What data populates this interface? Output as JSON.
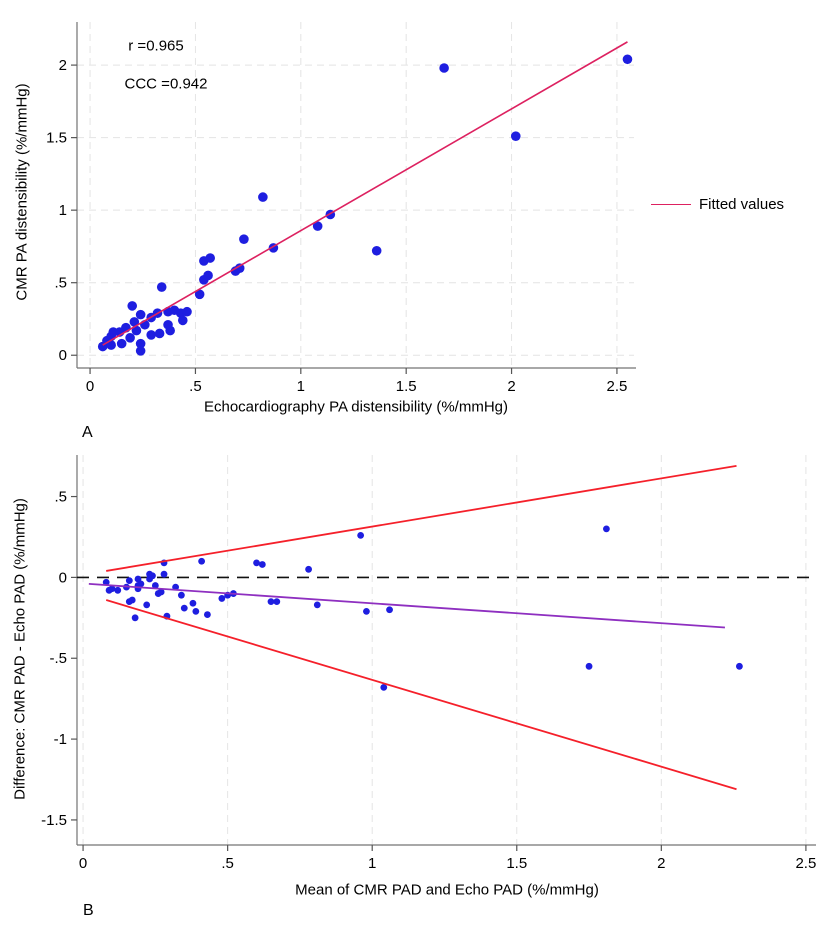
{
  "figure": {
    "background": "#ffffff",
    "panel_a_letter": "A",
    "panel_b_letter": "B"
  },
  "panel_a": {
    "y_title": "CMR PA distensibility (%/mmHg)",
    "x_title": "Echocardiography PA distensibility (%/mmHg)",
    "annotation_r": "r =0.965",
    "annotation_ccc": "CCC =0.942",
    "legend": {
      "label": "Fitted values",
      "line_color": "#dd2160"
    }
  },
  "panel_b": {
    "y_title": "Difference: CMR PAD - Echo PAD (%/mmHg)",
    "x_title": "Mean of CMR PAD and Echo PAD (%/mmHg)"
  },
  "chart_data": [
    {
      "id": "panel-a",
      "type": "scatter",
      "title": "",
      "xlabel": "Echocardiography PA distensibility (%/mmHg)",
      "ylabel": "CMR PA distensibility (%/mmHg)",
      "xlim": [
        -0.062,
        2.581
      ],
      "ylim": [
        -0.088,
        2.297
      ],
      "xticks": [
        0,
        0.5,
        1,
        1.5,
        2,
        2.5
      ],
      "xtick_labels": [
        "0",
        ".5",
        "1",
        "1.5",
        "2",
        "2.5"
      ],
      "yticks": [
        0,
        0.5,
        1,
        1.5,
        2
      ],
      "ytick_labels": [
        "0",
        ".5",
        "1",
        "1.5",
        "2"
      ],
      "grid": {
        "x": true,
        "y": true
      },
      "point_color": "#1e1ee0",
      "stats": {
        "r": 0.965,
        "ccc": 0.942
      },
      "points": [
        [
          0.06,
          0.06
        ],
        [
          0.08,
          0.1
        ],
        [
          0.1,
          0.07
        ],
        [
          0.1,
          0.13
        ],
        [
          0.11,
          0.16
        ],
        [
          0.14,
          0.16
        ],
        [
          0.15,
          0.08
        ],
        [
          0.17,
          0.19
        ],
        [
          0.19,
          0.12
        ],
        [
          0.2,
          0.34
        ],
        [
          0.21,
          0.23
        ],
        [
          0.22,
          0.17
        ],
        [
          0.24,
          0.03
        ],
        [
          0.24,
          0.08
        ],
        [
          0.24,
          0.28
        ],
        [
          0.26,
          0.21
        ],
        [
          0.29,
          0.14
        ],
        [
          0.29,
          0.26
        ],
        [
          0.32,
          0.29
        ],
        [
          0.33,
          0.15
        ],
        [
          0.34,
          0.47
        ],
        [
          0.37,
          0.21
        ],
        [
          0.37,
          0.3
        ],
        [
          0.38,
          0.17
        ],
        [
          0.4,
          0.31
        ],
        [
          0.43,
          0.29
        ],
        [
          0.44,
          0.24
        ],
        [
          0.46,
          0.3
        ],
        [
          0.52,
          0.42
        ],
        [
          0.54,
          0.52
        ],
        [
          0.56,
          0.55
        ],
        [
          0.54,
          0.65
        ],
        [
          0.57,
          0.67
        ],
        [
          0.69,
          0.58
        ],
        [
          0.71,
          0.6
        ],
        [
          0.73,
          0.8
        ],
        [
          0.82,
          1.09
        ],
        [
          0.87,
          0.74
        ],
        [
          1.08,
          0.89
        ],
        [
          1.14,
          0.97
        ],
        [
          1.36,
          0.72
        ],
        [
          1.68,
          1.98
        ],
        [
          2.02,
          1.51
        ],
        [
          2.55,
          2.04
        ]
      ],
      "lines": [
        {
          "name": "fitted-line",
          "label": "Fitted values",
          "layer": "over",
          "x1": 0.06,
          "y1": 0.07,
          "x2": 2.55,
          "y2": 2.16,
          "color": "#dd2160",
          "width": 1.6,
          "dash": ""
        }
      ]
    },
    {
      "id": "panel-b",
      "type": "scatter",
      "title": "",
      "xlabel": "Mean of CMR PAD and Echo PAD (%/mmHg)",
      "ylabel": "Difference: CMR PAD - Echo PAD (%/mmHg)",
      "xlim": [
        -0.021,
        2.528
      ],
      "ylim": [
        -1.655,
        0.757
      ],
      "xticks": [
        0,
        0.5,
        1,
        1.5,
        2,
        2.5
      ],
      "xtick_labels": [
        "0",
        ".5",
        "1",
        "1.5",
        "2",
        "2.5"
      ],
      "yticks": [
        0.5,
        0,
        -0.5,
        -1,
        -1.5
      ],
      "ytick_labels": [
        ".5",
        "0",
        "-.5",
        "-1",
        "-1.5"
      ],
      "grid": {
        "x": true,
        "y": false
      },
      "point_color": "#1e1ee0",
      "points": [
        [
          0.08,
          -0.03
        ],
        [
          0.09,
          -0.08
        ],
        [
          0.1,
          -0.07
        ],
        [
          0.12,
          -0.08
        ],
        [
          0.15,
          -0.06
        ],
        [
          0.16,
          -0.02
        ],
        [
          0.16,
          -0.15
        ],
        [
          0.17,
          -0.14
        ],
        [
          0.18,
          -0.25
        ],
        [
          0.19,
          -0.01
        ],
        [
          0.19,
          -0.05
        ],
        [
          0.19,
          -0.07
        ],
        [
          0.2,
          -0.04
        ],
        [
          0.22,
          -0.17
        ],
        [
          0.23,
          0.02
        ],
        [
          0.23,
          -0.01
        ],
        [
          0.24,
          0.01
        ],
        [
          0.25,
          -0.05
        ],
        [
          0.26,
          -0.1
        ],
        [
          0.27,
          -0.09
        ],
        [
          0.28,
          0.09
        ],
        [
          0.28,
          0.02
        ],
        [
          0.29,
          -0.24
        ],
        [
          0.32,
          -0.06
        ],
        [
          0.34,
          -0.11
        ],
        [
          0.35,
          -0.19
        ],
        [
          0.38,
          -0.16
        ],
        [
          0.39,
          -0.21
        ],
        [
          0.41,
          0.1
        ],
        [
          0.43,
          -0.23
        ],
        [
          0.48,
          -0.13
        ],
        [
          0.5,
          -0.11
        ],
        [
          0.52,
          -0.1
        ],
        [
          0.6,
          0.09
        ],
        [
          0.62,
          0.08
        ],
        [
          0.65,
          -0.15
        ],
        [
          0.67,
          -0.15
        ],
        [
          0.78,
          0.05
        ],
        [
          0.81,
          -0.17
        ],
        [
          0.96,
          0.26
        ],
        [
          0.98,
          -0.21
        ],
        [
          1.06,
          -0.2
        ],
        [
          1.04,
          -0.68
        ],
        [
          1.81,
          0.3
        ],
        [
          1.75,
          -0.55
        ],
        [
          2.27,
          -0.55
        ]
      ],
      "lines": [
        {
          "name": "zero-line",
          "label": "zero difference",
          "layer": "under",
          "x1": -0.021,
          "y1": 0,
          "x2": 2.528,
          "y2": 0,
          "color": "#111111",
          "width": 1.6,
          "dash": "12,8"
        },
        {
          "name": "bias-line",
          "label": "fitted bias",
          "layer": "over",
          "x1": 0.02,
          "y1": -0.04,
          "x2": 2.22,
          "y2": -0.31,
          "color": "#8e2fc0",
          "width": 1.8,
          "dash": ""
        },
        {
          "name": "loa-upper-line",
          "label": "upper limit of agreement",
          "layer": "over",
          "x1": 0.08,
          "y1": 0.04,
          "x2": 2.26,
          "y2": 0.69,
          "color": "#f5202a",
          "width": 1.8,
          "dash": ""
        },
        {
          "name": "loa-lower-line",
          "label": "lower limit of agreement",
          "layer": "over",
          "x1": 0.08,
          "y1": -0.14,
          "x2": 2.26,
          "y2": -1.31,
          "color": "#f5202a",
          "width": 1.8,
          "dash": ""
        }
      ]
    }
  ]
}
